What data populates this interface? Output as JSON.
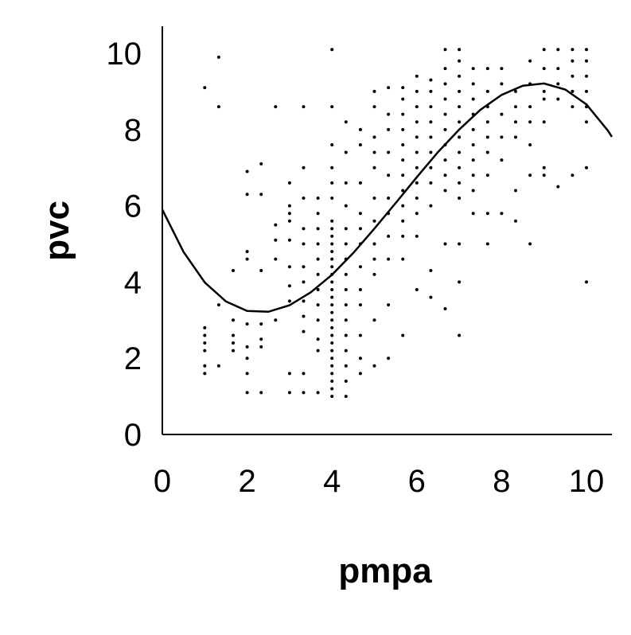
{
  "chart_data": {
    "type": "scatter",
    "xlabel": "pmpa",
    "ylabel": "pvc",
    "xlim": [
      0,
      10.6
    ],
    "ylim": [
      0,
      10.7
    ],
    "xticks": [
      0,
      2,
      4,
      6,
      8,
      10
    ],
    "yticks": [
      0,
      2,
      4,
      6,
      8,
      10
    ],
    "grid": false,
    "series": [
      {
        "type": "scatter",
        "color": "#000000",
        "x": [
          1.0,
          1.0,
          1.0,
          1.0,
          1.0,
          1.0,
          1.0,
          1.33,
          1.33,
          1.33,
          1.33,
          1.67,
          1.67,
          1.67,
          1.67,
          1.67,
          2.0,
          2.0,
          2.0,
          2.0,
          2.0,
          2.0,
          2.0,
          2.0,
          2.0,
          2.33,
          2.33,
          2.33,
          2.33,
          2.33,
          2.33,
          2.33,
          2.67,
          2.67,
          2.67,
          2.67,
          2.67,
          3.0,
          3.0,
          3.0,
          3.0,
          3.0,
          3.0,
          3.0,
          3.0,
          3.0,
          3.0,
          3.33,
          3.33,
          3.33,
          3.33,
          3.33,
          3.33,
          3.33,
          3.33,
          3.33,
          3.33,
          3.33,
          3.33,
          3.67,
          3.67,
          3.67,
          3.67,
          3.67,
          3.67,
          3.67,
          3.67,
          3.67,
          3.67,
          3.67,
          3.67,
          4.0,
          4.0,
          4.0,
          4.0,
          4.0,
          4.0,
          4.0,
          4.0,
          4.0,
          4.0,
          4.0,
          4.0,
          4.0,
          4.0,
          4.0,
          4.0,
          4.0,
          4.0,
          4.0,
          4.0,
          4.0,
          4.0,
          4.0,
          4.0,
          4.0,
          4.0,
          4.0,
          4.0,
          4.0,
          4.0,
          4.33,
          4.33,
          4.33,
          4.33,
          4.33,
          4.33,
          4.33,
          4.33,
          4.33,
          4.33,
          4.33,
          4.33,
          4.33,
          4.33,
          4.33,
          4.33,
          4.67,
          4.67,
          4.67,
          4.67,
          4.67,
          4.67,
          4.67,
          4.67,
          4.67,
          4.67,
          4.67,
          4.67,
          5.0,
          5.0,
          5.0,
          5.0,
          5.0,
          5.0,
          5.0,
          5.0,
          5.0,
          5.0,
          5.0,
          5.0,
          5.33,
          5.33,
          5.33,
          5.33,
          5.33,
          5.33,
          5.33,
          5.33,
          5.33,
          5.33,
          5.33,
          5.67,
          5.67,
          5.67,
          5.67,
          5.67,
          5.67,
          5.67,
          5.67,
          5.67,
          5.67,
          5.67,
          5.67,
          5.67,
          6.0,
          6.0,
          6.0,
          6.0,
          6.0,
          6.0,
          6.0,
          6.0,
          6.0,
          6.0,
          6.0,
          6.0,
          6.33,
          6.33,
          6.33,
          6.33,
          6.33,
          6.33,
          6.33,
          6.33,
          6.33,
          6.33,
          6.33,
          6.67,
          6.67,
          6.67,
          6.67,
          6.67,
          6.67,
          6.67,
          6.67,
          6.67,
          6.67,
          6.67,
          6.67,
          7.0,
          7.0,
          7.0,
          7.0,
          7.0,
          7.0,
          7.0,
          7.0,
          7.0,
          7.0,
          7.0,
          7.0,
          7.0,
          7.0,
          7.33,
          7.33,
          7.33,
          7.33,
          7.33,
          7.33,
          7.33,
          7.33,
          7.33,
          7.33,
          7.67,
          7.67,
          7.67,
          7.67,
          7.67,
          7.67,
          7.67,
          7.67,
          7.67,
          8.0,
          8.0,
          8.0,
          8.0,
          8.0,
          8.0,
          8.33,
          8.33,
          8.33,
          8.33,
          8.33,
          8.33,
          8.67,
          8.67,
          8.67,
          8.67,
          8.67,
          8.67,
          8.67,
          9.0,
          9.0,
          9.0,
          9.0,
          9.0,
          9.0,
          9.0,
          9.33,
          9.33,
          9.33,
          9.33,
          9.33,
          9.67,
          9.67,
          9.67,
          9.67,
          9.67,
          9.67,
          10.0,
          10.0,
          10.0,
          10.0,
          10.0,
          10.0,
          10.0,
          10.0
        ],
        "values": [
          1.6,
          1.8,
          2.2,
          2.4,
          2.6,
          2.8,
          9.1,
          1.8,
          3.4,
          8.6,
          9.9,
          2.2,
          2.4,
          2.6,
          3.0,
          4.3,
          1.1,
          1.6,
          2.0,
          2.3,
          2.9,
          4.6,
          4.8,
          6.3,
          6.9,
          1.1,
          2.3,
          2.5,
          2.9,
          4.3,
          6.3,
          7.1,
          3.0,
          4.6,
          5.1,
          5.5,
          8.6,
          1.1,
          1.6,
          3.5,
          3.9,
          4.4,
          5.1,
          5.6,
          5.8,
          6.0,
          6.6,
          1.1,
          1.6,
          2.7,
          3.1,
          3.5,
          4.0,
          4.4,
          5.0,
          5.4,
          6.2,
          7.0,
          8.6,
          1.1,
          2.2,
          2.5,
          3.0,
          3.4,
          3.8,
          4.2,
          4.6,
          5.0,
          5.4,
          5.8,
          6.2,
          1.0,
          1.2,
          1.4,
          1.6,
          1.8,
          2.0,
          2.2,
          2.4,
          2.6,
          2.8,
          3.0,
          3.2,
          3.4,
          3.6,
          3.8,
          4.0,
          4.2,
          4.4,
          4.6,
          4.8,
          5.0,
          5.2,
          5.4,
          5.6,
          6.2,
          6.6,
          7.0,
          7.6,
          8.6,
          10.1,
          1.0,
          1.4,
          1.8,
          2.2,
          2.6,
          3.0,
          3.4,
          3.8,
          4.2,
          4.6,
          5.0,
          5.4,
          6.0,
          6.6,
          7.4,
          8.2,
          1.6,
          2.0,
          2.6,
          3.4,
          3.8,
          4.4,
          5.0,
          5.4,
          5.8,
          6.6,
          7.6,
          8.0,
          1.8,
          3.0,
          4.2,
          4.6,
          5.0,
          5.6,
          6.2,
          7.0,
          7.4,
          7.8,
          8.6,
          9.0,
          2.0,
          3.4,
          4.6,
          5.2,
          5.8,
          6.2,
          6.8,
          7.4,
          8.0,
          8.4,
          9.1,
          2.6,
          4.6,
          5.2,
          5.6,
          6.0,
          6.4,
          6.8,
          7.2,
          7.6,
          8.0,
          8.4,
          8.8,
          9.1,
          3.8,
          5.2,
          5.8,
          6.2,
          6.6,
          7.0,
          7.4,
          7.8,
          8.2,
          8.6,
          9.0,
          9.4,
          3.6,
          4.3,
          6.0,
          6.6,
          7.0,
          7.4,
          7.8,
          8.2,
          8.6,
          9.0,
          9.3,
          3.3,
          5.0,
          6.4,
          6.8,
          7.2,
          7.6,
          8.0,
          8.4,
          8.8,
          9.2,
          9.6,
          10.1,
          2.6,
          4.0,
          5.0,
          6.2,
          6.6,
          7.0,
          7.4,
          7.8,
          8.2,
          8.6,
          9.0,
          9.4,
          9.8,
          10.1,
          5.8,
          6.4,
          6.8,
          7.2,
          7.6,
          8.0,
          8.4,
          8.8,
          9.2,
          9.6,
          5.0,
          5.8,
          6.8,
          7.4,
          7.8,
          8.2,
          8.6,
          9.0,
          9.6,
          5.8,
          7.2,
          7.8,
          8.4,
          9.2,
          9.6,
          5.6,
          6.4,
          7.8,
          8.2,
          8.6,
          9.0,
          5.0,
          6.8,
          7.6,
          8.2,
          8.6,
          9.2,
          9.8,
          6.8,
          7.0,
          8.2,
          8.8,
          9.0,
          9.6,
          10.1,
          6.5,
          8.8,
          9.2,
          9.6,
          10.1,
          6.8,
          8.6,
          9.0,
          9.4,
          9.8,
          10.1,
          4.0,
          7.0,
          8.2,
          8.6,
          9.0,
          9.4,
          9.8,
          10.1
        ]
      },
      {
        "type": "line",
        "color": "#000000",
        "x": [
          0,
          0.5,
          1,
          1.5,
          2,
          2.5,
          3,
          3.5,
          4,
          4.5,
          5,
          5.5,
          6,
          6.5,
          7,
          7.5,
          8,
          8.5,
          9,
          9.5,
          10,
          10.5,
          10.6
        ],
        "values": [
          5.9,
          4.79,
          3.99,
          3.49,
          3.24,
          3.22,
          3.39,
          3.73,
          4.19,
          4.76,
          5.4,
          6.07,
          6.75,
          7.41,
          8.0,
          8.52,
          8.91,
          9.15,
          9.21,
          9.05,
          8.66,
          7.98,
          7.81
        ]
      }
    ]
  }
}
